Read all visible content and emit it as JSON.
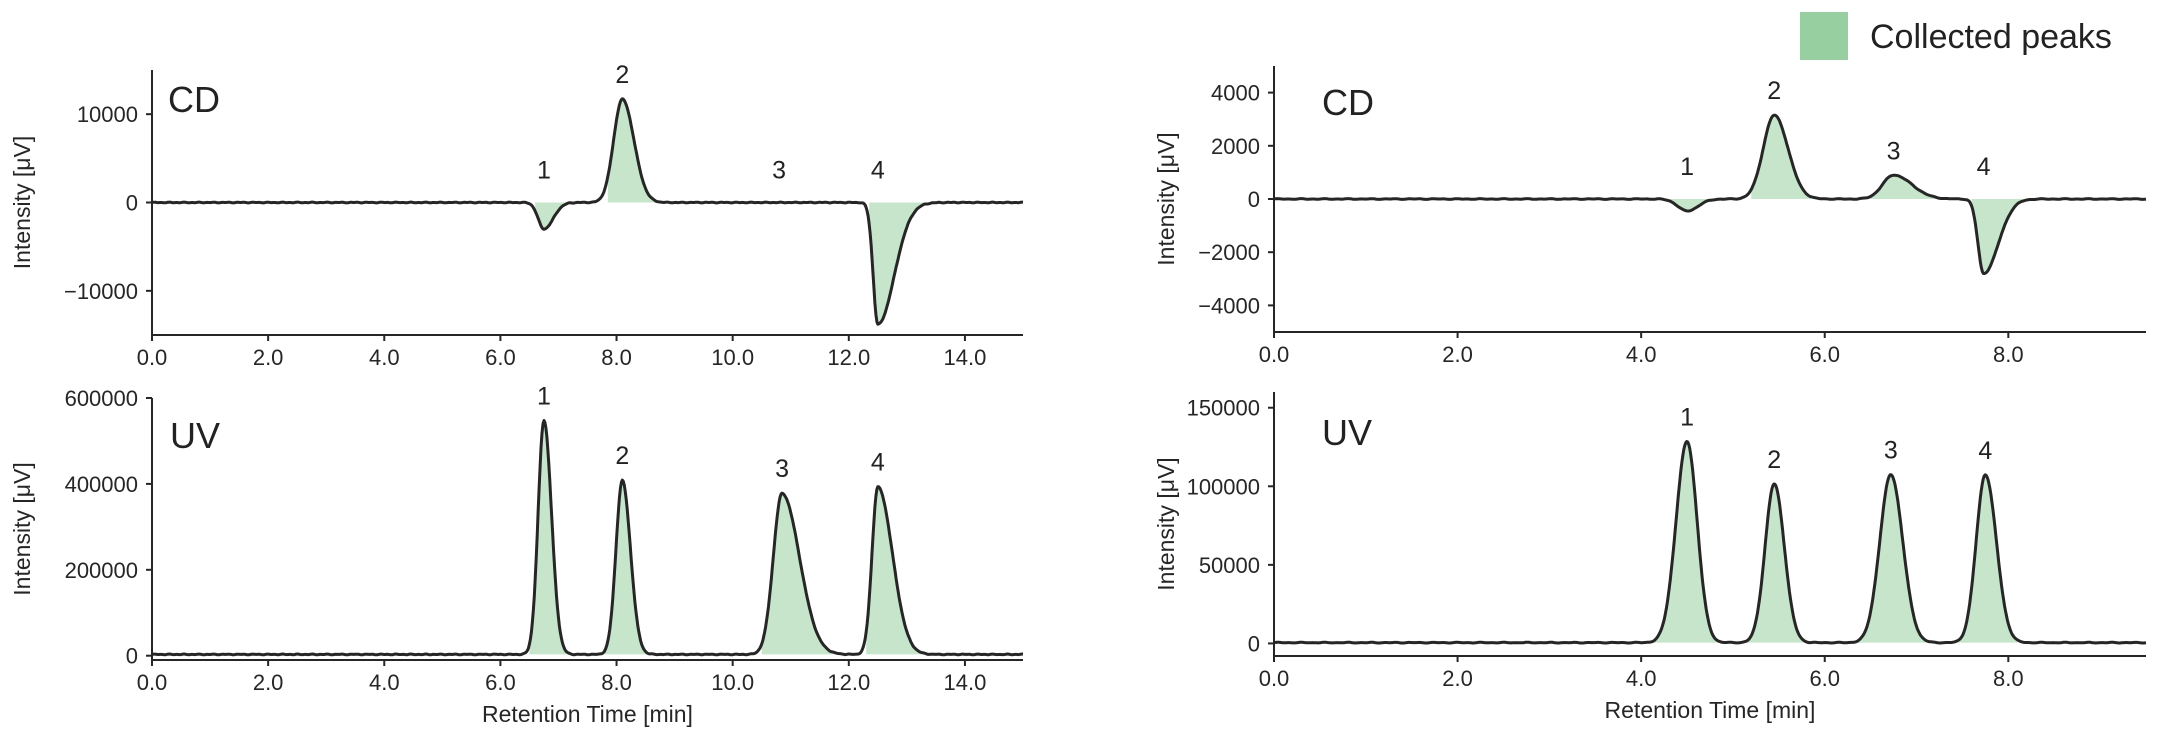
{
  "legend": {
    "label": "Collected peaks",
    "color": "#97cfa1"
  },
  "colors": {
    "trace": "#262626",
    "fill": "#97cfa1",
    "fill_opacity": 0.55
  },
  "chart_data": [
    {
      "type": "line",
      "panel": "top-left",
      "label": "CD",
      "xlim": [
        0,
        15
      ],
      "ylim": [
        -15000,
        15000
      ],
      "xticks": [
        0,
        2,
        4,
        6,
        8,
        10,
        12,
        14
      ],
      "xtick_labels": [
        "0.0",
        "2.0",
        "4.0",
        "6.0",
        "8.0",
        "10.0",
        "12.0",
        "14.0"
      ],
      "yticks": [
        10000,
        0,
        -10000
      ],
      "ytick_labels": [
        "10000",
        "0",
        "−10000"
      ],
      "xlabel": "",
      "ylabel": "Intensity [μV]",
      "baseline": 0,
      "peaks": [
        {
          "name": "1",
          "t": 6.75,
          "h": -3000,
          "sl": 0.1,
          "sr": 0.16,
          "from": 6.6,
          "to": 7.2
        },
        {
          "name": "2",
          "t": 8.1,
          "h": 11700,
          "sl": 0.15,
          "sr": 0.2,
          "from": 7.85,
          "to": 8.65
        },
        {
          "name": "3",
          "t": 10.8,
          "h": 0,
          "sl": 0.2,
          "sr": 0.2,
          "from": 10.75,
          "to": 10.85
        },
        {
          "name": "4",
          "t": 12.5,
          "h": -13800,
          "sl": 0.08,
          "sr": 0.28,
          "from": 12.35,
          "to": 13.35
        }
      ]
    },
    {
      "type": "line",
      "panel": "bottom-left",
      "label": "UV",
      "xlim": [
        0,
        15
      ],
      "ylim": [
        -10000,
        600000
      ],
      "xticks": [
        0,
        2,
        4,
        6,
        8,
        10,
        12,
        14
      ],
      "xtick_labels": [
        "0.0",
        "2.0",
        "4.0",
        "6.0",
        "8.0",
        "10.0",
        "12.0",
        "14.0"
      ],
      "yticks": [
        0,
        200000,
        400000,
        600000
      ],
      "ytick_labels": [
        "0",
        "200000",
        "400000",
        "600000"
      ],
      "xlabel": "Retention Time [min]",
      "ylabel": "Intensity [μV]",
      "baseline": 3000,
      "peaks": [
        {
          "name": "1",
          "t": 6.75,
          "h": 545000,
          "sl": 0.1,
          "sr": 0.13,
          "from": 6.5,
          "to": 7.15
        },
        {
          "name": "2",
          "t": 8.1,
          "h": 405000,
          "sl": 0.11,
          "sr": 0.14,
          "from": 7.8,
          "to": 8.55
        },
        {
          "name": "3",
          "t": 10.85,
          "h": 375000,
          "sl": 0.15,
          "sr": 0.3,
          "from": 10.5,
          "to": 11.85
        },
        {
          "name": "4",
          "t": 12.5,
          "h": 390000,
          "sl": 0.1,
          "sr": 0.25,
          "from": 12.3,
          "to": 13.5
        }
      ]
    },
    {
      "type": "line",
      "panel": "top-right",
      "label": "CD",
      "xlim": [
        0,
        9.5
      ],
      "ylim": [
        -5000,
        5000
      ],
      "xticks": [
        0,
        2,
        4,
        6,
        8
      ],
      "xtick_labels": [
        "0.0",
        "2.0",
        "4.0",
        "6.0",
        "8.0"
      ],
      "yticks": [
        4000,
        2000,
        0,
        -2000,
        -4000
      ],
      "ytick_labels": [
        "4000",
        "2000",
        "0",
        "−2000",
        "−4000"
      ],
      "xlabel": "",
      "ylabel": "Intensity [μV]",
      "baseline": 0,
      "peaks": [
        {
          "name": "1",
          "t": 4.5,
          "h": -450,
          "sl": 0.1,
          "sr": 0.12,
          "from": 4.3,
          "to": 4.75
        },
        {
          "name": "2",
          "t": 5.45,
          "h": 3150,
          "sl": 0.12,
          "sr": 0.15,
          "from": 5.2,
          "to": 5.85
        },
        {
          "name": "3",
          "t": 6.75,
          "h": 900,
          "sl": 0.12,
          "sr": 0.2,
          "from": 6.5,
          "to": 7.2
        },
        {
          "name": "4",
          "t": 7.73,
          "h": -2800,
          "sl": 0.06,
          "sr": 0.16,
          "from": 7.6,
          "to": 8.2
        }
      ]
    },
    {
      "type": "line",
      "panel": "bottom-right",
      "label": "UV",
      "xlim": [
        0,
        9.5
      ],
      "ylim": [
        -8000,
        160000
      ],
      "xticks": [
        0,
        2,
        4,
        6,
        8
      ],
      "xtick_labels": [
        "0.0",
        "2.0",
        "4.0",
        "6.0",
        "8.0"
      ],
      "yticks": [
        0,
        50000,
        100000,
        150000
      ],
      "ytick_labels": [
        "0",
        "50000",
        "100000",
        "150000"
      ],
      "xlabel": "Retention Time [min]",
      "ylabel": "Intensity [μV]",
      "baseline": 500,
      "peaks": [
        {
          "name": "1",
          "t": 4.5,
          "h": 128000,
          "sl": 0.12,
          "sr": 0.11,
          "from": 4.1,
          "to": 4.85
        },
        {
          "name": "2",
          "t": 5.45,
          "h": 101000,
          "sl": 0.1,
          "sr": 0.11,
          "from": 5.15,
          "to": 5.8
        },
        {
          "name": "3",
          "t": 6.72,
          "h": 107000,
          "sl": 0.12,
          "sr": 0.13,
          "from": 6.35,
          "to": 7.1
        },
        {
          "name": "4",
          "t": 7.75,
          "h": 107000,
          "sl": 0.1,
          "sr": 0.12,
          "from": 7.45,
          "to": 8.1
        }
      ]
    }
  ]
}
